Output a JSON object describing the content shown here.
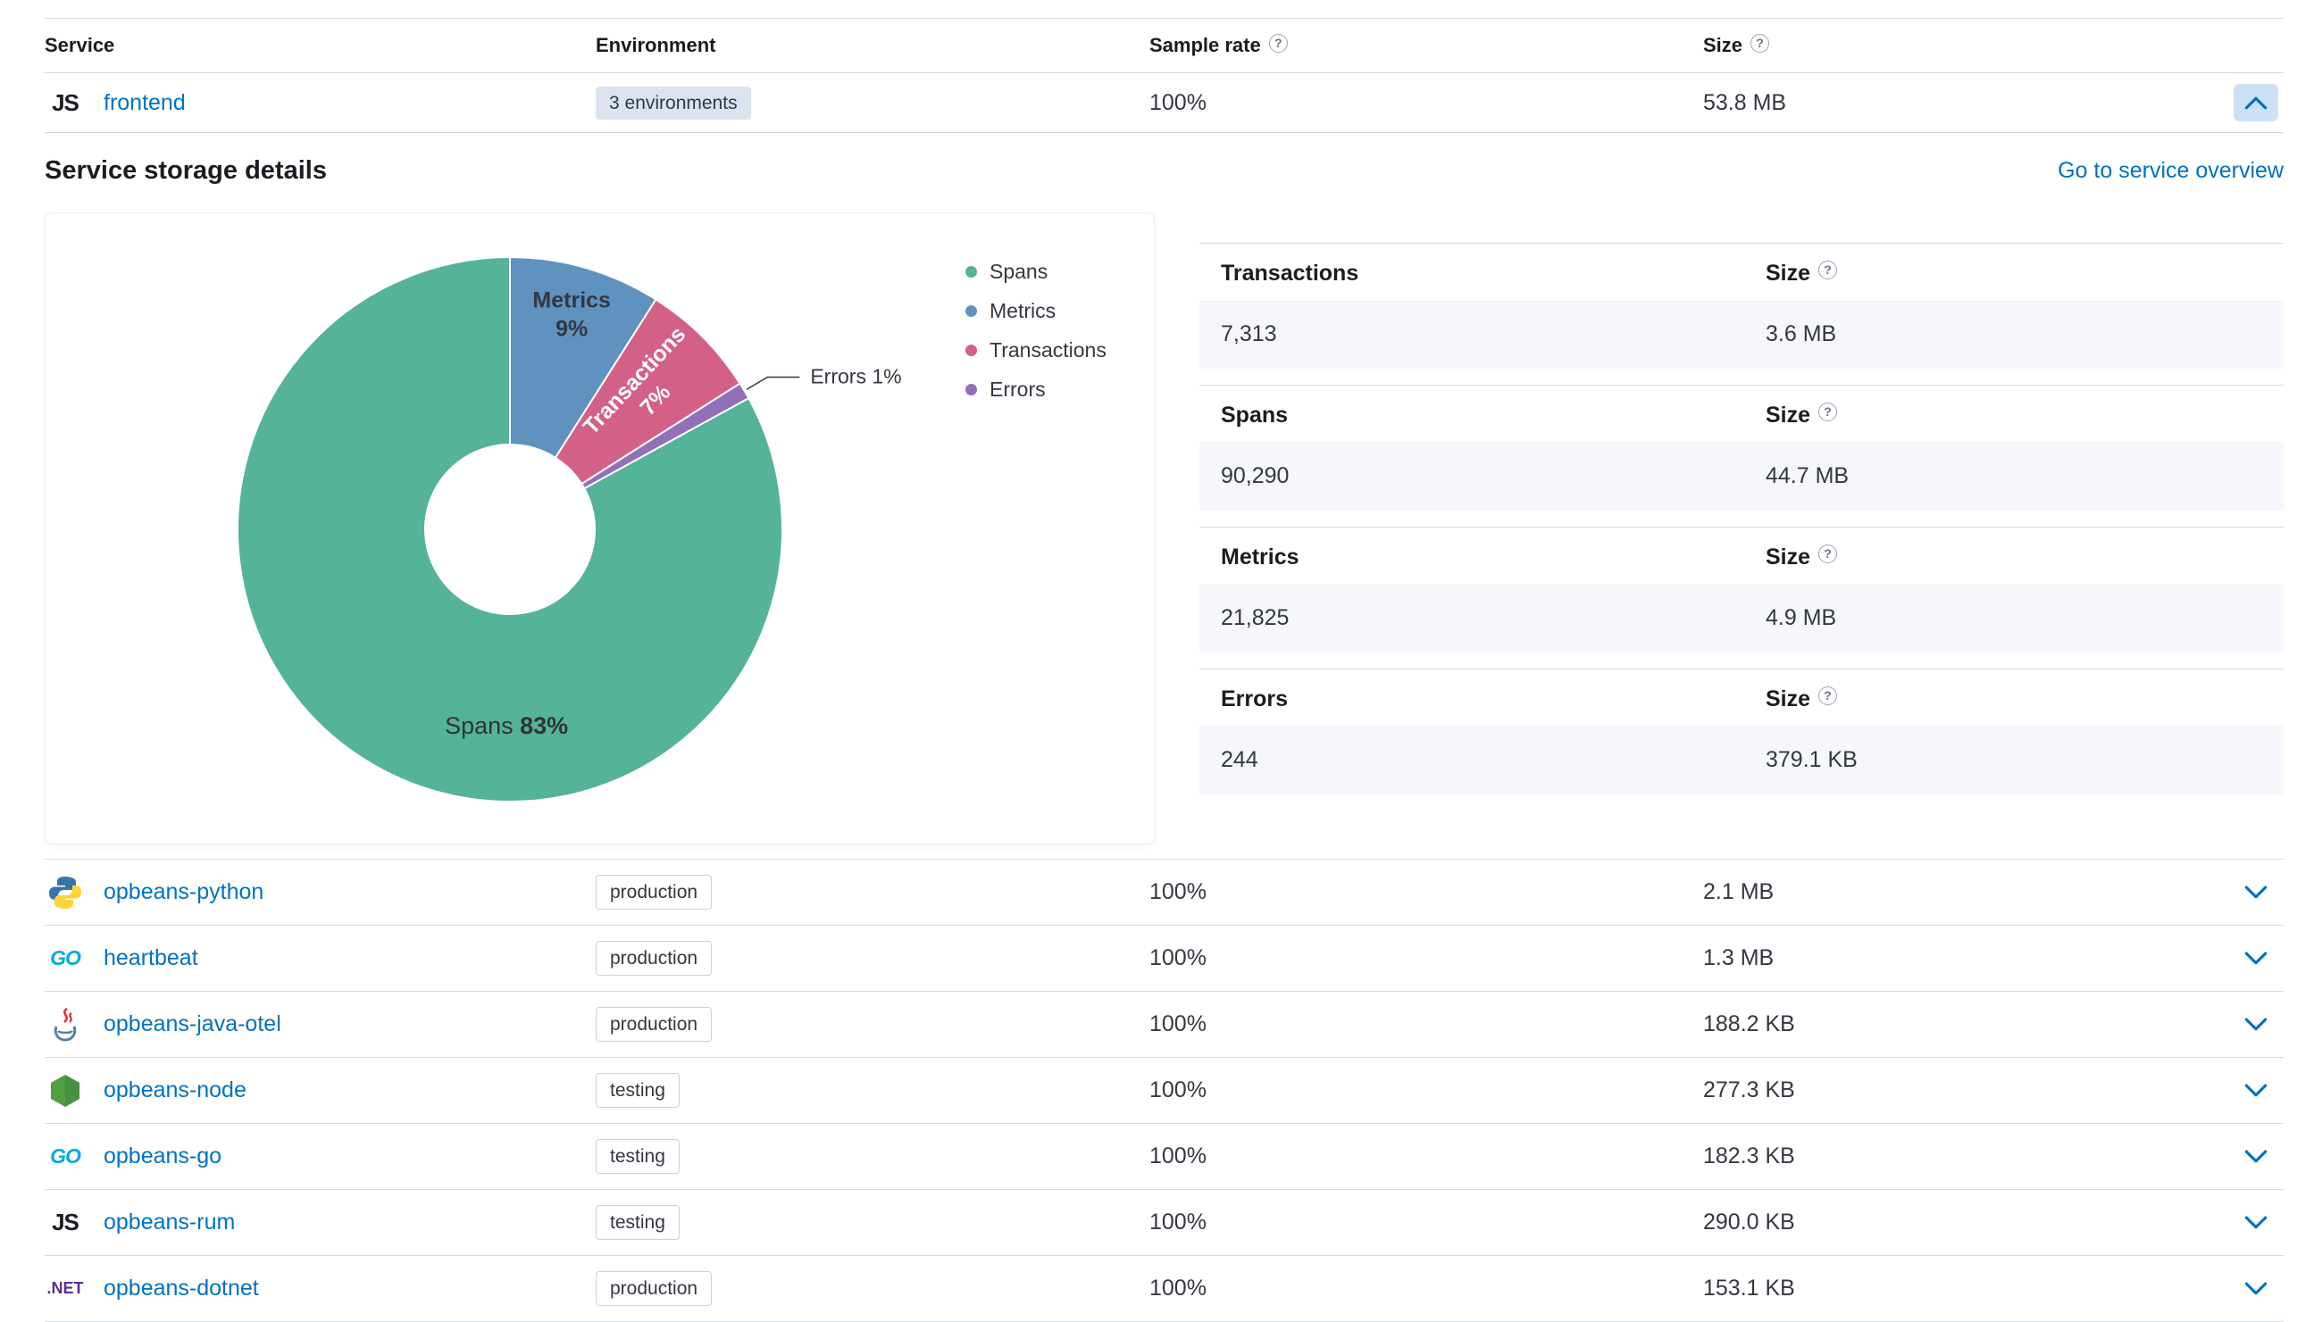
{
  "colors": {
    "link": "#0071C2",
    "border": "#D3DAE6",
    "value_row_bg": "#F5F7FA",
    "selected_button_bg": "#CCE1F5"
  },
  "icons": {
    "js_text": "JS",
    "go_text": "GO",
    "dotnet_text": ".NET",
    "info": "?"
  },
  "table": {
    "columns": [
      {
        "label": "Service"
      },
      {
        "label": "Environment"
      },
      {
        "label": "Sample rate",
        "info": true
      },
      {
        "label": "Size",
        "info": true
      }
    ],
    "expanded_row": {
      "service": "frontend",
      "icon": "js-icon",
      "environment_badge": "3 environments",
      "sample_rate": "100%",
      "size": "53.8 MB"
    },
    "rows": [
      {
        "service": "opbeans-python",
        "icon": "python-icon",
        "environment": "production",
        "sample_rate": "100%",
        "size": "2.1 MB"
      },
      {
        "service": "heartbeat",
        "icon": "go-icon",
        "environment": "production",
        "sample_rate": "100%",
        "size": "1.3 MB"
      },
      {
        "service": "opbeans-java-otel",
        "icon": "java-icon",
        "environment": "production",
        "sample_rate": "100%",
        "size": "188.2 KB"
      },
      {
        "service": "opbeans-node",
        "icon": "node-icon",
        "environment": "testing",
        "sample_rate": "100%",
        "size": "277.3 KB"
      },
      {
        "service": "opbeans-go",
        "icon": "go-icon",
        "environment": "testing",
        "sample_rate": "100%",
        "size": "182.3 KB"
      },
      {
        "service": "opbeans-rum",
        "icon": "js-icon",
        "environment": "testing",
        "sample_rate": "100%",
        "size": "290.0 KB"
      },
      {
        "service": "opbeans-dotnet",
        "icon": "dotnet-icon",
        "environment": "production",
        "sample_rate": "100%",
        "size": "153.1 KB"
      }
    ]
  },
  "details": {
    "title": "Service storage details",
    "overview_link": "Go to service overview",
    "size_label": "Size",
    "stats": [
      {
        "label": "Transactions",
        "count": "7,313",
        "size": "3.6 MB"
      },
      {
        "label": "Spans",
        "count": "90,290",
        "size": "44.7 MB"
      },
      {
        "label": "Metrics",
        "count": "21,825",
        "size": "4.9 MB"
      },
      {
        "label": "Errors",
        "count": "244",
        "size": "379.1 KB"
      }
    ]
  },
  "chart_data": {
    "type": "pie",
    "donut": true,
    "title": "",
    "legend_position": "right",
    "slices": [
      {
        "label": "Spans",
        "pct": 83,
        "color": "#54B399",
        "label_style": "inside-inline",
        "label_r": 222,
        "label_angle": 181
      },
      {
        "label": "Metrics",
        "pct": 9,
        "color": "#6092C0",
        "label_style": "inside-stacked",
        "label_r": 251,
        "label_angle": 16
      },
      {
        "label": "Transactions",
        "pct": 7,
        "color": "#D36086",
        "label_style": "inside-rotated",
        "label_r": 217,
        "label_angle": 44,
        "label_rotation": -47
      },
      {
        "label": "Errors",
        "pct": 1,
        "color": "#9170B8",
        "label_style": "callout"
      }
    ],
    "draw_order_from_top_clockwise": [
      "Metrics",
      "Transactions",
      "Errors",
      "Spans"
    ]
  }
}
